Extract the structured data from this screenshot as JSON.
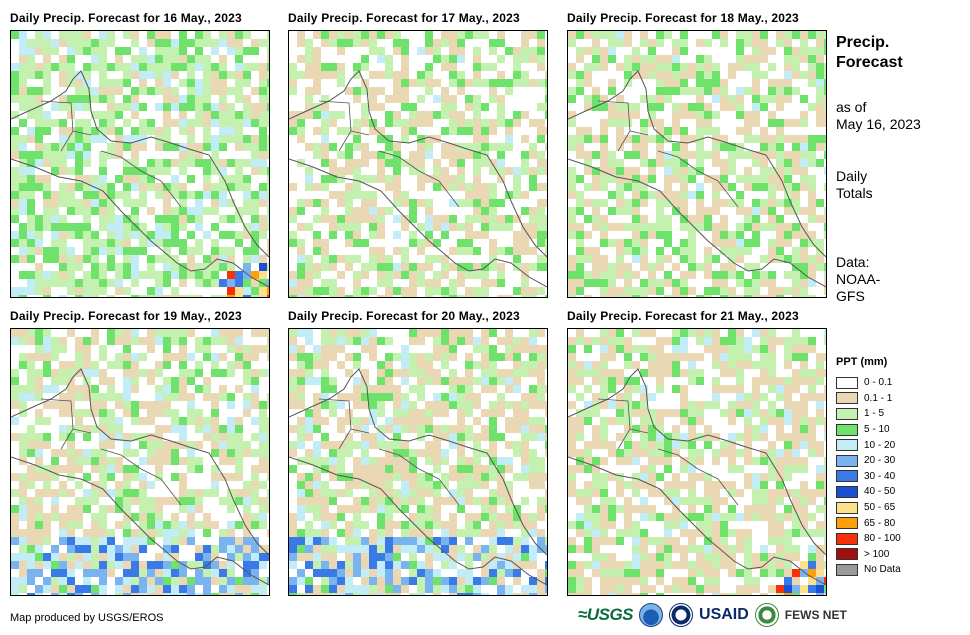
{
  "panels": [
    {
      "title": "Daily Precip. Forecast for 16 May., 2023"
    },
    {
      "title": "Daily Precip. Forecast for 17 May., 2023"
    },
    {
      "title": "Daily Precip. Forecast for 18 May., 2023"
    },
    {
      "title": "Daily Precip. Forecast for 19 May., 2023"
    },
    {
      "title": "Daily Precip. Forecast for 20 May., 2023"
    },
    {
      "title": "Daily Precip. Forecast for 21 May., 2023"
    }
  ],
  "side": {
    "title_line1": "Precip.",
    "title_line2": "Forecast",
    "asof_line1": "as of",
    "asof_line2": "May 16, 2023",
    "totals_line1": "Daily",
    "totals_line2": "Totals",
    "data_line1": "Data:",
    "data_line2": "NOAA-",
    "data_line3": "GFS"
  },
  "legend": {
    "title": "PPT (mm)",
    "items": [
      {
        "label": "0 - 0.1",
        "color": "#ffffff"
      },
      {
        "label": "0.1 - 1",
        "color": "#ead8b4"
      },
      {
        "label": "1 - 5",
        "color": "#c4f0b0"
      },
      {
        "label": "5 - 10",
        "color": "#6ee26a"
      },
      {
        "label": "10 - 20",
        "color": "#c2ecf6"
      },
      {
        "label": "20 - 30",
        "color": "#7ab4f0"
      },
      {
        "label": "30 - 40",
        "color": "#3a7ae6"
      },
      {
        "label": "40 - 50",
        "color": "#1a50d2"
      },
      {
        "label": "50 - 65",
        "color": "#fce08a"
      },
      {
        "label": "65 - 80",
        "color": "#fca008"
      },
      {
        "label": "80 - 100",
        "color": "#f83008"
      },
      {
        "label": "> 100",
        "color": "#a01010"
      },
      {
        "label": "No Data",
        "color": "#9a9a9a"
      }
    ]
  },
  "footer": {
    "credit": "Map produced by USGS/EROS",
    "logo_usgs": "≈USGS",
    "logo_usaid": "USAID",
    "logo_fews": "FEWS NET"
  }
}
